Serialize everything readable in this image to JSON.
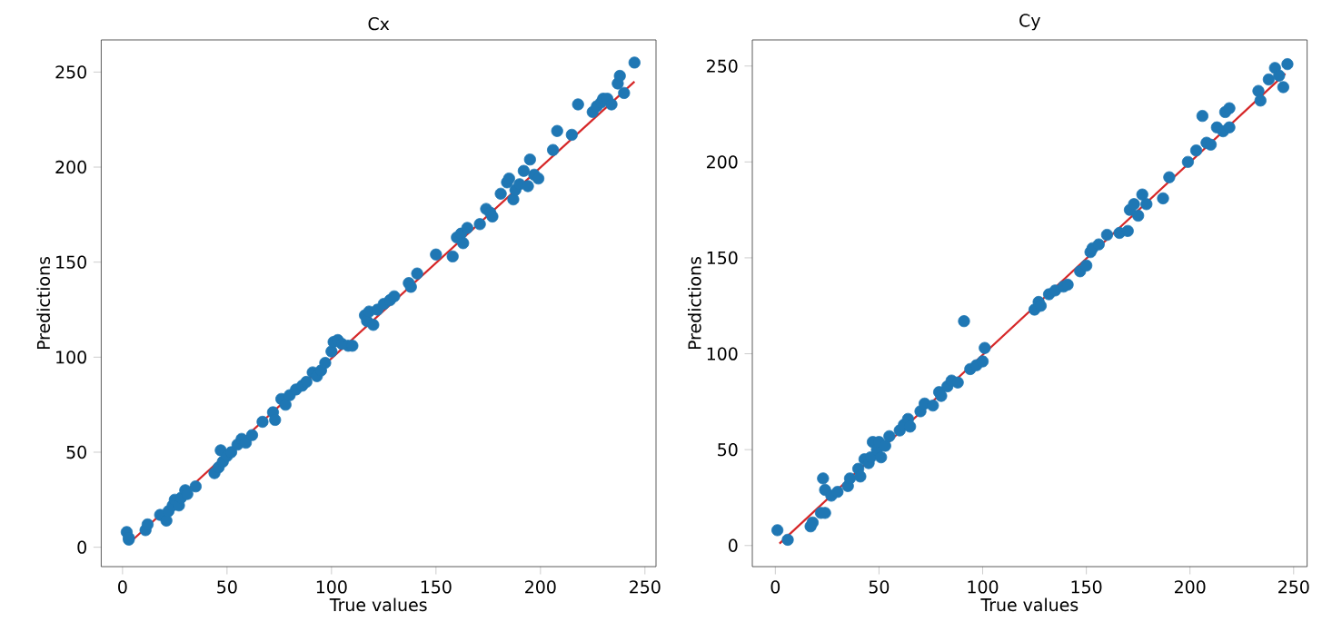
{
  "chart_data": [
    {
      "type": "scatter",
      "title": "Cx",
      "xlabel": "True values",
      "ylabel": "Predictions",
      "xlim": [
        -10.2,
        255.3
      ],
      "ylim": [
        -10.2,
        266.9
      ],
      "xticks": [
        0,
        50,
        100,
        150,
        200,
        250
      ],
      "yticks": [
        0,
        50,
        100,
        150,
        200,
        250
      ],
      "series": [
        {
          "marker": "circle",
          "color": "#1f77b4",
          "x": [
            2,
            3,
            3,
            11,
            12,
            18,
            21,
            22,
            24,
            25,
            27,
            28,
            30,
            31,
            35,
            44,
            46,
            47,
            48,
            50,
            52,
            55,
            57,
            59,
            62,
            67,
            72,
            73,
            76,
            78,
            80,
            83,
            86,
            88,
            91,
            93,
            95,
            97,
            100,
            101,
            103,
            105,
            108,
            110,
            116,
            117,
            118,
            120,
            122,
            125,
            128,
            130,
            137,
            138,
            141,
            150,
            158,
            160,
            162,
            163,
            165,
            171,
            174,
            176,
            177,
            181,
            184,
            185,
            187,
            188,
            190,
            192,
            194,
            195,
            197,
            199,
            206,
            208,
            215,
            218,
            225,
            227,
            229,
            230,
            232,
            234,
            237,
            238,
            240,
            245
          ],
          "values": [
            8,
            4,
            5,
            9,
            12,
            17,
            14,
            19,
            22,
            25,
            22,
            26,
            30,
            28,
            32,
            39,
            42,
            51,
            45,
            48,
            50,
            54,
            57,
            55,
            59,
            66,
            71,
            67,
            78,
            75,
            80,
            83,
            85,
            87,
            92,
            90,
            93,
            97,
            103,
            108,
            109,
            107,
            106,
            106,
            122,
            119,
            124,
            117,
            125,
            128,
            130,
            132,
            139,
            137,
            144,
            154,
            153,
            163,
            165,
            160,
            168,
            170,
            178,
            176,
            174,
            186,
            192,
            194,
            183,
            188,
            191,
            198,
            190,
            204,
            196,
            194,
            209,
            219,
            217,
            233,
            229,
            232,
            234,
            236,
            236,
            233,
            244,
            248,
            239,
            255
          ]
        },
        {
          "type": "line",
          "color": "#d62728",
          "x": [
            3,
            245
          ],
          "values": [
            2,
            245
          ]
        }
      ]
    },
    {
      "type": "scatter",
      "title": "Cy",
      "xlabel": "True values",
      "ylabel": "Predictions",
      "xlim": [
        -11.1,
        256.5
      ],
      "ylim": [
        -11,
        263.6
      ],
      "xticks": [
        0,
        50,
        100,
        150,
        200,
        250
      ],
      "yticks": [
        0,
        50,
        100,
        150,
        200,
        250
      ],
      "series": [
        {
          "marker": "circle",
          "color": "#1f77b4",
          "x": [
            1,
            6,
            17,
            18,
            22,
            23,
            24,
            24,
            27,
            30,
            35,
            36,
            40,
            41,
            43,
            45,
            46,
            47,
            49,
            50,
            51,
            53,
            55,
            60,
            62,
            64,
            65,
            70,
            72,
            76,
            79,
            80,
            83,
            85,
            88,
            91,
            94,
            97,
            100,
            101,
            125,
            127,
            128,
            132,
            135,
            139,
            141,
            147,
            150,
            152,
            153,
            156,
            160,
            166,
            170,
            171,
            173,
            175,
            177,
            179,
            187,
            190,
            199,
            203,
            206,
            208,
            210,
            213,
            216,
            217,
            219,
            219,
            233,
            234,
            238,
            241,
            243,
            245,
            247
          ],
          "values": [
            8,
            3,
            10,
            12,
            17,
            35,
            29,
            17,
            26,
            28,
            31,
            35,
            40,
            36,
            45,
            43,
            46,
            54,
            50,
            54,
            46,
            52,
            57,
            60,
            63,
            66,
            62,
            70,
            74,
            73,
            80,
            78,
            83,
            86,
            85,
            117,
            92,
            94,
            96,
            103,
            123,
            127,
            125,
            131,
            133,
            135,
            136,
            143,
            146,
            153,
            155,
            157,
            162,
            163,
            164,
            175,
            178,
            172,
            183,
            178,
            181,
            192,
            200,
            206,
            224,
            210,
            209,
            218,
            216,
            226,
            228,
            218,
            237,
            232,
            243,
            249,
            245,
            239,
            251
          ]
        },
        {
          "type": "line",
          "color": "#d62728",
          "x": [
            2,
            246
          ],
          "values": [
            1,
            246
          ]
        }
      ]
    }
  ]
}
